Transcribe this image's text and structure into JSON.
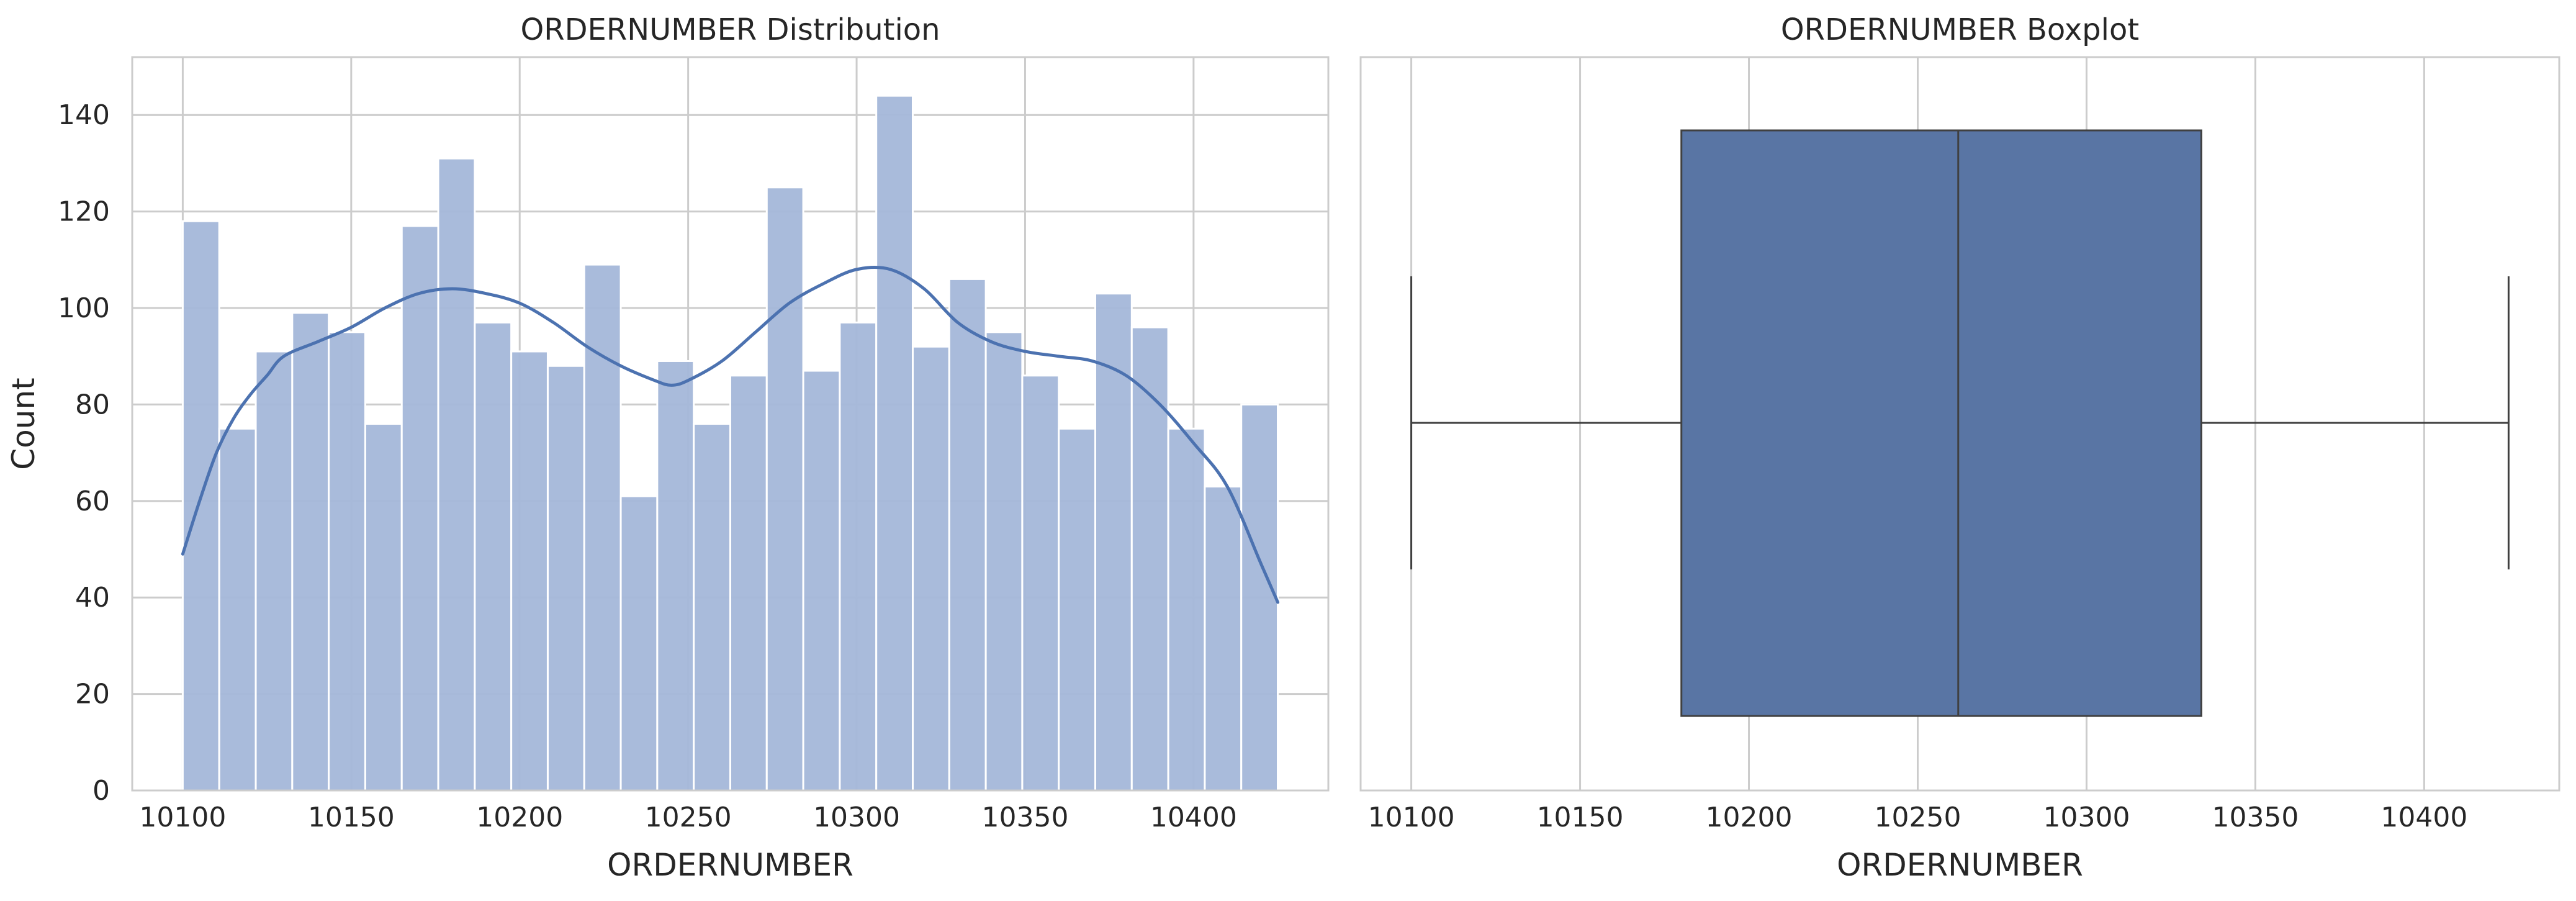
{
  "chart_data": [
    {
      "type": "bar",
      "subtype": "histogram-with-kde",
      "title": "ORDERNUMBER Distribution",
      "xlabel": "ORDERNUMBER",
      "ylabel": "Count",
      "xlim": [
        10085,
        10440
      ],
      "ylim": [
        0,
        152
      ],
      "xticks": [
        10100,
        10150,
        10200,
        10250,
        10300,
        10350,
        10400
      ],
      "yticks": [
        0,
        20,
        40,
        60,
        80,
        100,
        120,
        140
      ],
      "grid": true,
      "bar_color": "#a4b7d9",
      "line_color": "#4c72b0",
      "bin_start": 10100,
      "bin_width": 10.833,
      "values": [
        118,
        75,
        91,
        99,
        95,
        76,
        117,
        131,
        97,
        91,
        88,
        109,
        61,
        89,
        76,
        86,
        125,
        87,
        97,
        144,
        92,
        106,
        95,
        86,
        75,
        103,
        96,
        75,
        63,
        80
      ],
      "kde": {
        "x": [
          10100,
          10105,
          10110,
          10115,
          10120,
          10125,
          10130,
          10140,
          10150,
          10160,
          10170,
          10180,
          10190,
          10200,
          10210,
          10220,
          10230,
          10240,
          10245,
          10250,
          10260,
          10270,
          10280,
          10290,
          10300,
          10310,
          10320,
          10330,
          10340,
          10350,
          10360,
          10370,
          10380,
          10390,
          10400,
          10410,
          10420,
          10425
        ],
        "y": [
          49,
          60,
          70,
          77,
          82,
          86,
          90,
          93,
          96,
          100,
          103,
          104,
          103,
          101,
          97,
          92,
          88,
          85,
          84,
          85,
          89,
          95,
          101,
          105,
          108,
          108,
          104,
          97,
          93,
          91,
          90,
          89,
          86,
          80,
          72,
          63,
          47,
          39
        ]
      }
    },
    {
      "type": "box",
      "title": "ORDERNUMBER Boxplot",
      "xlabel": "ORDERNUMBER",
      "xlim": [
        10085,
        10440
      ],
      "xticks": [
        10100,
        10150,
        10200,
        10250,
        10300,
        10350,
        10400
      ],
      "grid": true,
      "box_color": "#5975a4",
      "line_color": "#404040",
      "whisker_low": 10100,
      "q1": 10180,
      "median": 10262,
      "q3": 10334,
      "whisker_high": 10425
    }
  ]
}
